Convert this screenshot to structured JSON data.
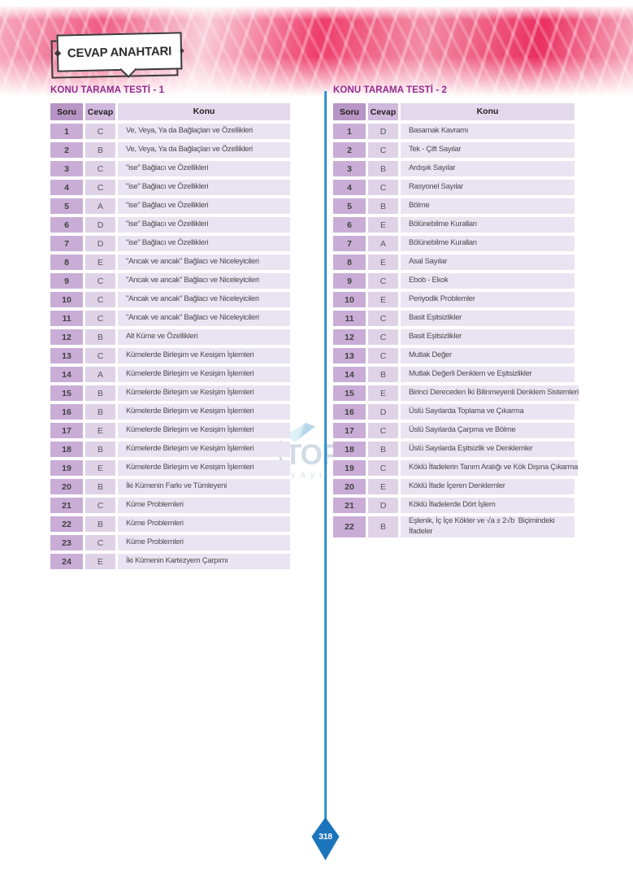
{
  "page": {
    "title": "CEVAP ANAHTARI",
    "page_number": "318"
  },
  "watermark": {
    "name": "TOP",
    "sub": "yayı"
  },
  "colors": {
    "heading_purple": "#932a8e",
    "divider_blue": "#1c75bc",
    "header_soru_bg": "#b795c5",
    "header_cevap_bg": "#d0b9dc",
    "header_konu_bg": "#e3d9ec",
    "cell_soru_bg": "#c9add6",
    "cell_cevap_bg": "#dfd2e7",
    "cell_konu_bg": "#eae3f1",
    "band_pink": "#ee3d6b"
  },
  "tables": [
    {
      "heading": "KONU TARAMA TESTİ - 1",
      "columns": [
        "Soru",
        "Cevap",
        "Konu"
      ],
      "rows": [
        {
          "soru": "1",
          "cevap": "C",
          "konu": "Ve, Veya, Ya da Bağlaçları ve Özellikleri"
        },
        {
          "soru": "2",
          "cevap": "B",
          "konu": "Ve, Veya, Ya da Bağlaçları ve Özellikleri"
        },
        {
          "soru": "3",
          "cevap": "C",
          "konu": "\"ise\" Bağlacı ve Özellikleri"
        },
        {
          "soru": "4",
          "cevap": "C",
          "konu": "\"ise\" Bağlacı ve Özellikleri"
        },
        {
          "soru": "5",
          "cevap": "A",
          "konu": "\"ise\" Bağlacı ve Özellikleri"
        },
        {
          "soru": "6",
          "cevap": "D",
          "konu": "\"ise\" Bağlacı ve Özellikleri"
        },
        {
          "soru": "7",
          "cevap": "D",
          "konu": "\"ise\" Bağlacı ve Özellikleri"
        },
        {
          "soru": "8",
          "cevap": "E",
          "konu": "\"Ancak ve ancak\" Bağlacı ve Niceleyicileri"
        },
        {
          "soru": "9",
          "cevap": "C",
          "konu": "\"Ancak ve ancak\" Bağlacı ve Niceleyicileri"
        },
        {
          "soru": "10",
          "cevap": "C",
          "konu": "\"Ancak ve ancak\" Bağlacı ve Niceleyicileri"
        },
        {
          "soru": "11",
          "cevap": "C",
          "konu": "\"Ancak ve ancak\" Bağlacı ve Niceleyicileri"
        },
        {
          "soru": "12",
          "cevap": "B",
          "konu": "Alt Küme ve Özellikleri"
        },
        {
          "soru": "13",
          "cevap": "C",
          "konu": "Kümelerde Birleşim ve Kesişim İşlemleri"
        },
        {
          "soru": "14",
          "cevap": "A",
          "konu": "Kümelerde Birleşim ve Kesişim İşlemleri"
        },
        {
          "soru": "15",
          "cevap": "B",
          "konu": "Kümelerde Birleşim ve Kesişim İşlemleri"
        },
        {
          "soru": "16",
          "cevap": "B",
          "konu": "Kümelerde Birleşim ve Kesişim İşlemleri"
        },
        {
          "soru": "17",
          "cevap": "E",
          "konu": "Kümelerde Birleşim ve Kesişim İşlemleri"
        },
        {
          "soru": "18",
          "cevap": "B",
          "konu": "Kümelerde Birleşim ve Kesişim İşlemleri"
        },
        {
          "soru": "19",
          "cevap": "E",
          "konu": "Kümelerde Birleşim ve Kesişim İşlemleri"
        },
        {
          "soru": "20",
          "cevap": "B",
          "konu": "İki Kümenin Farkı ve Tümleyeni"
        },
        {
          "soru": "21",
          "cevap": "C",
          "konu": "Küme Problemleri"
        },
        {
          "soru": "22",
          "cevap": "B",
          "konu": "Küme Problemleri"
        },
        {
          "soru": "23",
          "cevap": "C",
          "konu": "Küme Problemleri"
        },
        {
          "soru": "24",
          "cevap": "E",
          "konu": "İki Kümenin Kartezyem Çarpımı"
        }
      ]
    },
    {
      "heading": "KONU TARAMA TESTİ - 2",
      "columns": [
        "Soru",
        "Cevap",
        "Konu"
      ],
      "rows": [
        {
          "soru": "1",
          "cevap": "D",
          "konu": "Basamak Kavramı"
        },
        {
          "soru": "2",
          "cevap": "C",
          "konu": "Tek - Çift Sayılar"
        },
        {
          "soru": "3",
          "cevap": "B",
          "konu": "Ardışık Sayılar"
        },
        {
          "soru": "4",
          "cevap": "C",
          "konu": "Rasyonel Sayılar"
        },
        {
          "soru": "5",
          "cevap": "B",
          "konu": "Bölme"
        },
        {
          "soru": "6",
          "cevap": "E",
          "konu": "Bölünebilme Kuralları"
        },
        {
          "soru": "7",
          "cevap": "A",
          "konu": "Bölünebilme Kuralları"
        },
        {
          "soru": "8",
          "cevap": "E",
          "konu": "Asal Sayılar"
        },
        {
          "soru": "9",
          "cevap": "C",
          "konu": "Ebob - Ekok"
        },
        {
          "soru": "10",
          "cevap": "E",
          "konu": "Periyodik Problemler"
        },
        {
          "soru": "11",
          "cevap": "C",
          "konu": "Basit Eşitsizlikler"
        },
        {
          "soru": "12",
          "cevap": "C",
          "konu": "Basit Eşitsizlikler"
        },
        {
          "soru": "13",
          "cevap": "C",
          "konu": "Mutlak Değer"
        },
        {
          "soru": "14",
          "cevap": "B",
          "konu": "Mutlak Değerli Denklem ve Eşitsizlikler"
        },
        {
          "soru": "15",
          "cevap": "E",
          "konu": "Birinci Dereceden İki Bilinmeyenli Denklem Sistemleri"
        },
        {
          "soru": "16",
          "cevap": "D",
          "konu": "Üslü Sayılarda Toplama ve Çıkarma"
        },
        {
          "soru": "17",
          "cevap": "C",
          "konu": "Üslü Sayılarda Çarpma ve Bölme"
        },
        {
          "soru": "18",
          "cevap": "B",
          "konu": "Üslü Sayılarda Eşitsizlik ve Denklemler"
        },
        {
          "soru": "19",
          "cevap": "C",
          "konu": "Köklü İfadelerin Tanım Aralığı ve Kök Dışına Çıkarma"
        },
        {
          "soru": "20",
          "cevap": "E",
          "konu": "Köklü İfade İçeren Denklemler"
        },
        {
          "soru": "21",
          "cevap": "D",
          "konu": "Köklü İfadelerde Dört İşlem"
        },
        {
          "soru": "22",
          "cevap": "B",
          "konu": "Eşlenik, İç İçe Kökler ve √a ± 2√b  Biçimindeki\nİfadeler"
        }
      ]
    }
  ]
}
